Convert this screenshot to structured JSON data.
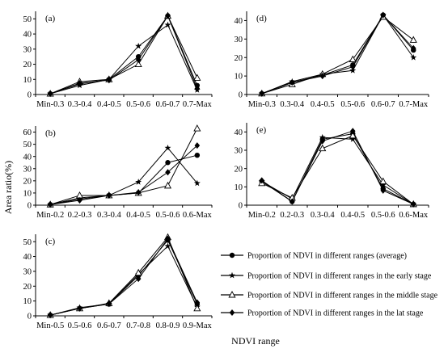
{
  "figure": {
    "ylabel": "Area ratio(%)",
    "xlabel": "NDVI range"
  },
  "legend": [
    {
      "label": "Proportion of NDVI in different ranges (average)",
      "marker": "circle"
    },
    {
      "label": "Proportion of NDVI in different ranges in the early stage",
      "marker": "star"
    },
    {
      "label": "Proportion of NDVI in different ranges in the middle stage",
      "marker": "triangle-open"
    },
    {
      "label": "Proportion of NDVI in different ranges in the lat stage",
      "marker": "diamond"
    }
  ],
  "chart_data": [
    {
      "type": "line",
      "tag": "(a)",
      "categories": [
        "Min-0.3",
        "0.3-0.4",
        "0.4-0.5",
        "0.5-0.6",
        "0.6-0.7",
        "0.7-Max"
      ],
      "ylim": [
        0,
        55
      ],
      "yticks": [
        0,
        10,
        20,
        30,
        40,
        50
      ],
      "series": [
        {
          "marker": "circle",
          "values": [
            0.5,
            7,
            10,
            25,
            52,
            6
          ]
        },
        {
          "marker": "star",
          "values": [
            0.5,
            6,
            10,
            32,
            46,
            3
          ]
        },
        {
          "marker": "triangle-open",
          "values": [
            0.5,
            8.5,
            10,
            20,
            52,
            11
          ]
        },
        {
          "marker": "diamond",
          "values": [
            0.5,
            7.5,
            9.5,
            23,
            52,
            4
          ]
        }
      ]
    },
    {
      "type": "line",
      "tag": "(d)",
      "categories": [
        "Min-0.3",
        "0.3-0.4",
        "0.4-0.5",
        "0.5-0.6",
        "0.6-0.7",
        "0.7-Max"
      ],
      "ylim": [
        0,
        45
      ],
      "yticks": [
        0,
        10,
        20,
        30,
        40
      ],
      "series": [
        {
          "marker": "circle",
          "values": [
            0.5,
            6.5,
            10.5,
            16,
            43,
            24
          ]
        },
        {
          "marker": "star",
          "values": [
            0.5,
            7,
            11,
            13,
            43,
            20
          ]
        },
        {
          "marker": "triangle-open",
          "values": [
            0.5,
            5.5,
            11,
            19,
            42,
            29.5
          ]
        },
        {
          "marker": "diamond",
          "values": [
            0.5,
            6.5,
            10,
            15,
            43,
            25
          ]
        }
      ]
    },
    {
      "type": "line",
      "tag": "(b)",
      "categories": [
        "Min-0.2",
        "0.2-0.3",
        "0.3-0.4",
        "0.4-0.5",
        "0.5-0.6",
        "0.6-Max"
      ],
      "ylim": [
        0,
        65
      ],
      "yticks": [
        0,
        10,
        20,
        30,
        40,
        50,
        60
      ],
      "series": [
        {
          "marker": "circle",
          "values": [
            0.5,
            5,
            8,
            10,
            35,
            41
          ]
        },
        {
          "marker": "star",
          "values": [
            0.5,
            6,
            8,
            19,
            47,
            18
          ]
        },
        {
          "marker": "triangle-open",
          "values": [
            0.5,
            8,
            8,
            10,
            16,
            63
          ]
        },
        {
          "marker": "diamond",
          "values": [
            0.5,
            4,
            8,
            10.5,
            27,
            49
          ]
        }
      ]
    },
    {
      "type": "line",
      "tag": "(e)",
      "categories": [
        "Min-0.2",
        "0.2-0.3",
        "0.3-0.4",
        "0.4-0.5",
        "0.5-0.6",
        "0.6-Max"
      ],
      "ylim": [
        0,
        45
      ],
      "yticks": [
        0,
        10,
        20,
        30,
        40
      ],
      "series": [
        {
          "marker": "circle",
          "values": [
            13,
            2,
            36,
            39,
            9,
            0.5
          ]
        },
        {
          "marker": "star",
          "values": [
            13,
            3.5,
            37,
            36,
            11,
            0.5
          ]
        },
        {
          "marker": "triangle-open",
          "values": [
            12,
            4,
            31,
            38,
            13,
            0.5
          ]
        },
        {
          "marker": "diamond",
          "values": [
            13.5,
            2,
            35,
            40.5,
            8,
            0.5
          ]
        }
      ]
    },
    {
      "type": "line",
      "tag": "(c)",
      "categories": [
        "Min-0.5",
        "0.5-0.6",
        "0.6-0.7",
        "0.7-0.8",
        "0.8-0.9",
        "0.9-Max"
      ],
      "ylim": [
        0,
        55
      ],
      "yticks": [
        0,
        10,
        20,
        30,
        40,
        50
      ],
      "series": [
        {
          "marker": "circle",
          "values": [
            0.5,
            5,
            8,
            27,
            51,
            8
          ]
        },
        {
          "marker": "star",
          "values": [
            0.5,
            5.5,
            8,
            28,
            47,
            6
          ]
        },
        {
          "marker": "triangle-open",
          "values": [
            0.5,
            5,
            8.5,
            29,
            53,
            5
          ]
        },
        {
          "marker": "diamond",
          "values": [
            0.5,
            5,
            8,
            25,
            52,
            9
          ]
        }
      ]
    }
  ]
}
